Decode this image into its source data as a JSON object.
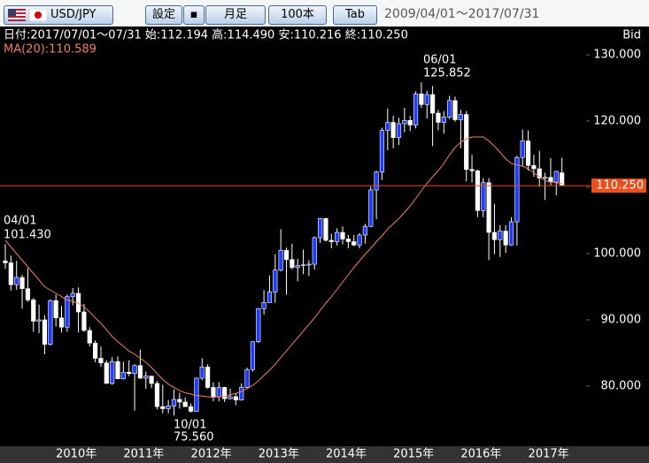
{
  "toolbar": {
    "pair": "USD/JPY",
    "buttons": [
      "設定",
      "月足",
      "100本",
      "Tab"
    ],
    "range": "2009/04/01～2017/07/31"
  },
  "chart_data": {
    "type": "candlestick",
    "info": "日付:2017/07/01～07/31 始:112.194 高:114.490 安:110.216 終:110.250",
    "ma_label": "MA(20):110.589",
    "axis_label": "Bid",
    "annotations": [
      "04/01",
      "101.430",
      "06/01",
      "125.852",
      "10/01",
      "75.560"
    ],
    "up_color": "#1e3cff",
    "down_color": "#ffffff",
    "ma_color": "#f08060",
    "last_color": "#e8501e",
    "categories": [
      null,
      null,
      null,
      null,
      null,
      null,
      null,
      null,
      null,
      "2010年",
      null,
      null,
      null,
      null,
      null,
      null,
      null,
      null,
      null,
      null,
      null,
      "2011年",
      null,
      null,
      null,
      null,
      null,
      null,
      null,
      null,
      null,
      null,
      null,
      "2012年",
      null,
      null,
      null,
      null,
      null,
      null,
      null,
      null,
      null,
      null,
      null,
      "2013年",
      null,
      null,
      null,
      null,
      null,
      null,
      null,
      null,
      null,
      null,
      null,
      "2014年",
      null,
      null,
      null,
      null,
      null,
      null,
      null,
      null,
      null,
      null,
      null,
      "2015年",
      null,
      null,
      null,
      null,
      null,
      null,
      null,
      null,
      null,
      null,
      null,
      "2016年",
      null,
      null,
      null,
      null,
      null,
      null,
      null,
      null,
      null,
      null,
      null,
      "2017年",
      null,
      null,
      null,
      null,
      null,
      null
    ],
    "open": [
      98.9,
      98.6,
      95.3,
      96.4,
      94.7,
      93.0,
      89.8,
      90.0,
      86.3,
      92.9,
      90.3,
      88.9,
      93.5,
      94.0,
      91.2,
      88.4,
      86.5,
      84.2,
      83.5,
      80.4,
      83.7,
      81.1,
      82.1,
      81.9,
      83.1,
      81.2,
      81.5,
      80.4,
      76.9,
      76.6,
      77.0,
      78.0,
      77.6,
      76.9,
      76.2,
      81.2,
      82.9,
      79.8,
      78.4,
      79.8,
      78.1,
      78.4,
      77.9,
      79.8,
      82.5,
      86.7,
      91.7,
      92.6,
      94.2,
      97.5,
      100.5,
      99.1,
      97.9,
      98.2,
      98.3,
      98.4,
      102.4,
      105.3,
      102.0,
      101.8,
      103.2,
      102.2,
      101.8,
      101.3,
      102.8,
      104.1,
      109.6,
      112.3,
      118.6,
      119.8,
      117.5,
      119.6,
      120.1,
      119.4,
      124.1,
      122.5,
      124.0,
      121.2,
      119.8,
      120.6,
      123.1,
      120.2,
      121.0,
      112.7,
      112.5,
      106.5,
      110.7,
      103.2,
      102.1,
      103.4,
      101.3,
      104.8,
      114.5,
      117.0,
      113.3,
      112.8,
      111.4,
      111.5,
      110.8,
      112.194
    ],
    "high": [
      101.43,
      99.7,
      98.9,
      96.8,
      97.8,
      93.3,
      92.3,
      90.7,
      93.1,
      93.8,
      92.1,
      93.8,
      94.8,
      94.9,
      92.4,
      88.9,
      86.9,
      86.0,
      83.9,
      84.4,
      84.5,
      83.7,
      83.9,
      83.3,
      85.5,
      82.2,
      81.6,
      80.8,
      80.2,
      77.9,
      79.5,
      79.0,
      78.3,
      77.4,
      81.3,
      84.2,
      83.3,
      80.6,
      80.6,
      79.9,
      79.6,
      78.9,
      80.4,
      82.8,
      86.8,
      91.8,
      94.5,
      96.7,
      99.9,
      103.7,
      100.9,
      101.5,
      99.2,
      100.6,
      99.0,
      102.6,
      105.4,
      105.4,
      103.0,
      103.8,
      104.1,
      102.8,
      102.8,
      103.1,
      104.5,
      110.1,
      112.5,
      119.0,
      121.9,
      120.8,
      120.5,
      122.0,
      120.8,
      124.5,
      125.852,
      124.6,
      125.3,
      121.7,
      121.5,
      123.8,
      123.7,
      121.7,
      121.5,
      114.9,
      112.7,
      111.4,
      111.4,
      107.5,
      104.3,
      104.3,
      105.5,
      114.8,
      118.7,
      118.6,
      114.9,
      115.5,
      112.2,
      114.4,
      112.5,
      114.49
    ],
    "low": [
      97.7,
      94.4,
      94.5,
      91.7,
      92.7,
      88.2,
      88.0,
      84.8,
      86.1,
      89.0,
      88.1,
      88.2,
      92.2,
      88.1,
      88.2,
      86.0,
      83.6,
      82.9,
      80.4,
      80.2,
      81.1,
      81.0,
      81.5,
      76.3,
      81.1,
      79.6,
      79.7,
      76.5,
      75.9,
      75.9,
      75.56,
      76.6,
      76.9,
      76.0,
      76.1,
      80.9,
      79.6,
      77.7,
      77.7,
      77.6,
      78.0,
      77.1,
      77.8,
      79.7,
      82.2,
      86.5,
      90.8,
      92.6,
      92.6,
      97.3,
      93.8,
      97.6,
      95.8,
      96.9,
      96.6,
      97.6,
      101.6,
      101.8,
      100.8,
      101.2,
      101.4,
      100.8,
      101.1,
      100.8,
      101.5,
      104.0,
      105.2,
      111.1,
      115.6,
      115.9,
      116.4,
      118.3,
      118.5,
      118.9,
      122.0,
      120.4,
      116.2,
      118.6,
      118.1,
      120.3,
      119.9,
      115.9,
      110.9,
      110.7,
      105.5,
      105.5,
      99.0,
      99.9,
      99.5,
      100.1,
      101.2,
      101.2,
      113.1,
      112.5,
      111.6,
      110.1,
      108.1,
      110.2,
      108.8,
      110.216
    ],
    "close": [
      98.6,
      95.3,
      96.4,
      94.7,
      93.0,
      89.8,
      90.0,
      86.3,
      92.9,
      90.3,
      88.9,
      93.5,
      94.0,
      91.2,
      88.4,
      86.5,
      84.2,
      83.5,
      80.4,
      83.7,
      81.1,
      82.1,
      81.9,
      83.1,
      81.2,
      81.5,
      80.4,
      76.9,
      76.6,
      77.0,
      78.0,
      77.6,
      76.9,
      76.2,
      81.2,
      82.9,
      79.8,
      78.4,
      79.8,
      78.1,
      78.4,
      77.9,
      79.8,
      82.5,
      86.7,
      91.7,
      92.6,
      94.2,
      97.5,
      100.5,
      99.1,
      97.9,
      98.2,
      98.3,
      98.4,
      102.4,
      105.3,
      102.0,
      101.8,
      103.2,
      102.2,
      101.8,
      101.3,
      102.8,
      104.1,
      109.6,
      112.3,
      118.6,
      119.8,
      117.5,
      119.6,
      120.1,
      119.4,
      124.1,
      122.5,
      124.0,
      121.2,
      119.8,
      120.6,
      123.1,
      120.2,
      121.0,
      112.7,
      112.5,
      106.5,
      110.7,
      103.2,
      102.1,
      103.4,
      101.3,
      104.8,
      114.5,
      117.0,
      113.3,
      112.8,
      111.4,
      111.5,
      110.8,
      112.4,
      110.25
    ],
    "ma": [
      102.0,
      101.0,
      100.0,
      99.0,
      98.0,
      97.0,
      96.0,
      95.0,
      94.5,
      94.0,
      93.5,
      93.0,
      92.8,
      92.5,
      92.0,
      91.2,
      90.3,
      89.5,
      88.5,
      87.5,
      86.7,
      86.0,
      85.3,
      84.8,
      84.2,
      83.6,
      82.8,
      81.9,
      81.0,
      80.3,
      79.8,
      79.3,
      79.0,
      78.8,
      78.6,
      78.5,
      78.4,
      78.3,
      78.4,
      78.5,
      78.7,
      78.9,
      79.2,
      79.6,
      80.1,
      80.8,
      81.6,
      82.4,
      83.3,
      84.3,
      85.3,
      86.3,
      87.3,
      88.3,
      89.3,
      90.3,
      91.4,
      92.5,
      93.5,
      94.6,
      95.7,
      96.8,
      97.9,
      98.9,
      99.9,
      100.8,
      101.8,
      102.7,
      103.7,
      104.5,
      105.3,
      106.2,
      107.2,
      108.3,
      109.5,
      110.6,
      111.6,
      112.5,
      113.6,
      114.9,
      116.0,
      116.8,
      117.3,
      117.6,
      117.6,
      117.6,
      117.0,
      116.2,
      115.3,
      114.3,
      113.6,
      113.4,
      113.2,
      112.8,
      112.2,
      111.6,
      111.0,
      110.8,
      110.7,
      110.589
    ],
    "last_price": {
      "value": 110.25,
      "label": "110.250"
    },
    "ylim": [
      70.93,
      134.27
    ],
    "yticks": [
      {
        "value": 80,
        "label": "80.000"
      },
      {
        "value": 90,
        "label": "90.000"
      },
      {
        "value": 100,
        "label": "100.000"
      },
      {
        "value": 110,
        "label": "110.000"
      },
      {
        "value": 120,
        "label": "120.000"
      },
      {
        "value": 130,
        "label": "130.000"
      }
    ]
  }
}
